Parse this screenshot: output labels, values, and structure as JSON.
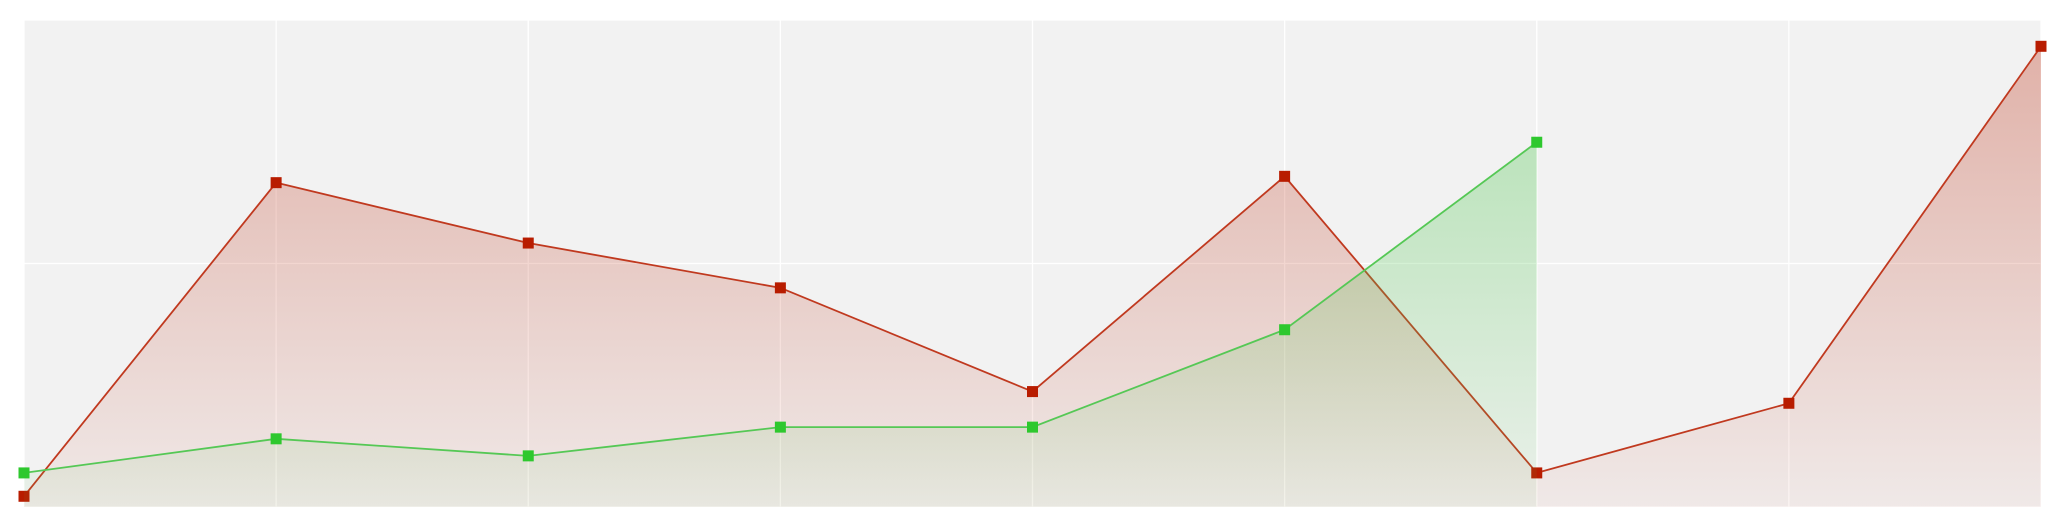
{
  "chart_data": {
    "type": "area",
    "x": [
      0,
      1,
      2,
      3,
      4,
      5,
      6,
      7,
      8
    ],
    "xlim": [
      0,
      8
    ],
    "xticks": [
      0,
      1,
      2,
      3,
      4,
      5,
      6,
      7,
      8
    ],
    "ylim": [
      0,
      100
    ],
    "yticks": [
      0,
      50,
      100
    ],
    "grid": true,
    "background": "#f2f2f2",
    "series": [
      {
        "color": "#c0391f",
        "marker_color": "#b81c00",
        "values": [
          2.2,
          66.6,
          54.2,
          45.0,
          23.7,
          67.9,
          7.0,
          21.3,
          94.6
        ]
      },
      {
        "color": "#55c855",
        "marker_color": "#2ec82e",
        "values": [
          7.0,
          14.0,
          10.5,
          16.4,
          16.4,
          36.4,
          74.9,
          null,
          null
        ]
      }
    ]
  }
}
